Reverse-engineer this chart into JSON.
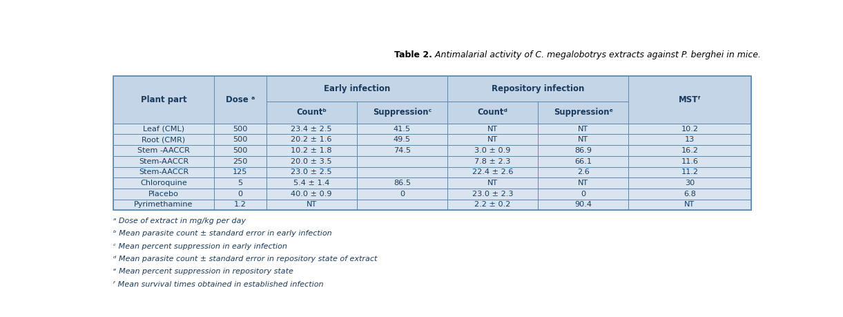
{
  "title_bold": "Table 2.",
  "title_italic": " Antimalarial activity of C. megalobotrys extracts against P. berghei in mice.",
  "header_bg": "#c5d5e8",
  "row_bg": "#d8e4f0",
  "border_color": "#5a8ab0",
  "text_color": "#1a3a5c",
  "col_lefts_rel": [
    0.0,
    0.158,
    0.24,
    0.382,
    0.524,
    0.666,
    0.808
  ],
  "col_rights_rel": [
    0.158,
    0.24,
    0.382,
    0.524,
    0.666,
    0.808,
    1.0
  ],
  "data_rows": [
    [
      "Leaf (CML)",
      "500",
      "23.4 ± 2.5",
      "41.5",
      "NT",
      "NT",
      "10.2"
    ],
    [
      "Root (CMR)",
      "500",
      "20.2 ± 1.6",
      "49.5",
      "NT",
      "NT",
      "13"
    ],
    [
      "Stem -AACCR",
      "500",
      "10.2 ± 1.8",
      "74.5",
      "3.0 ± 0.9",
      "86.9",
      "16.2"
    ],
    [
      "Stem-AACCR",
      "250",
      "20.0 ± 3.5",
      "",
      "7.8 ± 2.3",
      "66.1",
      "11.6"
    ],
    [
      "Stem-AACCR",
      "125",
      "23.0 ± 2.5",
      "",
      "22.4 ± 2.6",
      "2.6",
      "11.2"
    ],
    [
      "Chloroquine",
      "5",
      "5.4 ± 1.4",
      "86.5",
      "NT",
      "NT",
      "30"
    ],
    [
      "Placebo",
      "0",
      "40.0 ± 0.9",
      "0",
      "23.0 ± 2.3",
      "0",
      "6.8"
    ],
    [
      "Pyrimethamine",
      "1.2",
      "NT",
      "",
      "2.2 ± 0.2",
      "90.4",
      "NT"
    ]
  ],
  "footnotes": [
    "ᵃ Dose of extract in mg/kg per day",
    "ᵇ Mean parasite count ± standard error in early infection",
    "ᶜ Mean percent suppression in early infection",
    "ᵈ Mean parasite count ± standard error in repository state of extract",
    "ᵉ Mean percent suppression in repository state",
    "ᶠ Mean survival times obtained in established infection"
  ]
}
